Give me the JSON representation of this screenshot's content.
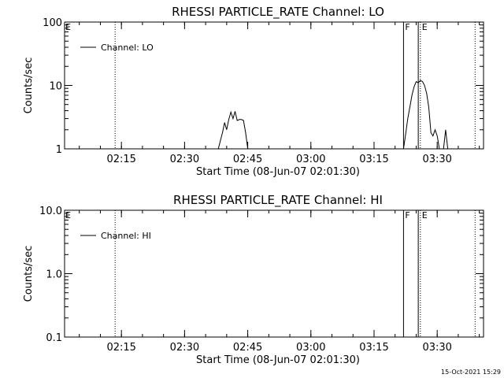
{
  "timestamp": "15-Oct-2021 15:29",
  "chart_data": [
    {
      "type": "line",
      "title": "RHESSI PARTICLE_RATE Channel: LO",
      "xlabel": "Start Time (08-Jun-07 02:01:30)",
      "ylabel": "Counts/sec",
      "yscale": "log",
      "x_unit": "minutes",
      "xlim": [
        "02:01:30",
        "03:41:00"
      ],
      "ylim": [
        1,
        100
      ],
      "x_ticks": [
        "02:15",
        "02:30",
        "02:45",
        "03:00",
        "03:15",
        "03:30"
      ],
      "y_ticks": [
        "1",
        "10",
        "100"
      ],
      "legend": {
        "placement": "top-left",
        "label": "Channel: LO"
      },
      "grid": false,
      "series": [
        {
          "name": "Channel: LO",
          "x": [
            "02:38:00",
            "02:39:00",
            "02:39:30",
            "02:40:00",
            "02:40:30",
            "02:41:00",
            "02:41:30",
            "02:42:00",
            "02:42:30",
            "02:43:00",
            "02:43:30",
            "02:44:00",
            "02:44:30",
            "02:45:00",
            "02:45:30",
            "02:46:00",
            "03:22:00",
            "03:22:30",
            "03:23:00",
            "03:23:30",
            "03:24:00",
            "03:24:30",
            "03:25:00",
            "03:25:30",
            "03:26:00",
            "03:26:30",
            "03:27:00",
            "03:27:30",
            "03:28:00",
            "03:28:30",
            "03:29:00",
            "03:29:30",
            "03:30:00",
            "03:30:30",
            "03:31:00",
            "03:31:30",
            "03:32:00",
            "03:32:30"
          ],
          "y": [
            1,
            1.8,
            2.6,
            2.0,
            2.9,
            3.8,
            3.0,
            3.9,
            2.8,
            2.9,
            2.9,
            2.8,
            1.8,
            1.0,
            1.0,
            1.0,
            1.0,
            1.7,
            3.0,
            4.5,
            7.0,
            9.5,
            11.5,
            11.0,
            12.0,
            11.5,
            10.0,
            7.5,
            4.5,
            1.8,
            1.6,
            2.0,
            1.6,
            1.0,
            1.0,
            1.0,
            2.0,
            1.0
          ]
        }
      ],
      "annotations": [
        {
          "x": "02:13:30",
          "style": "dotted"
        },
        {
          "x": "03:22:00",
          "style": "solid",
          "label": "F"
        },
        {
          "x": "03:25:30",
          "style": "solid"
        },
        {
          "x": "03:26:00",
          "style": "dotted",
          "label": "E"
        },
        {
          "x": "03:39:00",
          "style": "dotted"
        }
      ],
      "corner_label": "E"
    },
    {
      "type": "line",
      "title": "RHESSI PARTICLE_RATE Channel: HI",
      "xlabel": "Start Time (08-Jun-07 02:01:30)",
      "ylabel": "Counts/sec",
      "yscale": "log",
      "x_unit": "minutes",
      "xlim": [
        "02:01:30",
        "03:41:00"
      ],
      "ylim": [
        0.1,
        10
      ],
      "x_ticks": [
        "02:15",
        "02:30",
        "02:45",
        "03:00",
        "03:15",
        "03:30"
      ],
      "y_ticks": [
        "0.1",
        "1.0",
        "10.0"
      ],
      "legend": {
        "placement": "top-left",
        "label": "Channel: HI"
      },
      "grid": false,
      "series": [
        {
          "name": "Channel: HI",
          "x": [],
          "y": []
        }
      ],
      "annotations": [
        {
          "x": "02:13:30",
          "style": "dotted"
        },
        {
          "x": "03:22:00",
          "style": "solid",
          "label": "F"
        },
        {
          "x": "03:25:30",
          "style": "solid"
        },
        {
          "x": "03:26:00",
          "style": "dotted",
          "label": "E"
        },
        {
          "x": "03:39:00",
          "style": "dotted"
        }
      ],
      "corner_label": "E"
    }
  ]
}
